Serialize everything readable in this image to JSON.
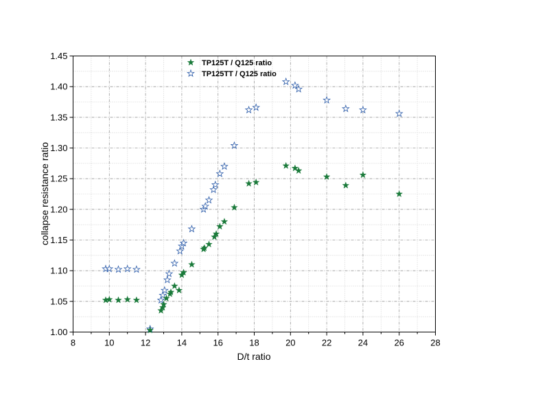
{
  "chart_data": {
    "type": "scatter",
    "title": "",
    "xlabel": "D/t ratio",
    "ylabel": "collapse resistance ratio",
    "xlim": [
      8,
      28
    ],
    "ylim": [
      1.0,
      1.45
    ],
    "xticks": [
      "8",
      "10",
      "12",
      "14",
      "16",
      "18",
      "20",
      "22",
      "24",
      "26",
      "28"
    ],
    "yticks": [
      "1.00",
      "1.05",
      "1.10",
      "1.15",
      "1.20",
      "1.25",
      "1.30",
      "1.35",
      "1.40",
      "1.45"
    ],
    "grid": true,
    "legend_position": "top",
    "series": [
      {
        "name": "TP125T / Q125 ratio",
        "marker": "filled-star",
        "color": "#1a7a3a",
        "points": [
          [
            9.8,
            1.052
          ],
          [
            10.0,
            1.053
          ],
          [
            10.5,
            1.052
          ],
          [
            11.0,
            1.053
          ],
          [
            11.5,
            1.052
          ],
          [
            12.25,
            1.003
          ],
          [
            12.85,
            1.035
          ],
          [
            12.95,
            1.04
          ],
          [
            13.0,
            1.045
          ],
          [
            13.15,
            1.055
          ],
          [
            13.35,
            1.062
          ],
          [
            13.4,
            1.065
          ],
          [
            13.6,
            1.075
          ],
          [
            13.85,
            1.068
          ],
          [
            14.0,
            1.093
          ],
          [
            14.1,
            1.097
          ],
          [
            14.55,
            1.11
          ],
          [
            15.2,
            1.135
          ],
          [
            15.25,
            1.137
          ],
          [
            15.5,
            1.143
          ],
          [
            15.8,
            1.155
          ],
          [
            15.9,
            1.16
          ],
          [
            16.1,
            1.172
          ],
          [
            16.35,
            1.18
          ],
          [
            16.9,
            1.203
          ],
          [
            17.7,
            1.242
          ],
          [
            18.1,
            1.244
          ],
          [
            19.75,
            1.271
          ],
          [
            20.25,
            1.267
          ],
          [
            20.45,
            1.263
          ],
          [
            22.0,
            1.253
          ],
          [
            23.05,
            1.239
          ],
          [
            24.0,
            1.256
          ],
          [
            26.0,
            1.225
          ]
        ]
      },
      {
        "name": "TP125TT / Q125 ratio",
        "marker": "open-star",
        "color": "#2a5aa8",
        "points": [
          [
            9.8,
            1.103
          ],
          [
            10.0,
            1.103
          ],
          [
            10.5,
            1.102
          ],
          [
            11.0,
            1.103
          ],
          [
            11.5,
            1.102
          ],
          [
            12.25,
            1.005
          ],
          [
            12.85,
            1.052
          ],
          [
            12.95,
            1.06
          ],
          [
            13.05,
            1.068
          ],
          [
            13.2,
            1.085
          ],
          [
            13.3,
            1.095
          ],
          [
            13.6,
            1.112
          ],
          [
            13.9,
            1.132
          ],
          [
            14.0,
            1.14
          ],
          [
            14.1,
            1.145
          ],
          [
            14.55,
            1.168
          ],
          [
            15.2,
            1.2
          ],
          [
            15.3,
            1.205
          ],
          [
            15.5,
            1.215
          ],
          [
            15.75,
            1.232
          ],
          [
            15.85,
            1.24
          ],
          [
            16.1,
            1.258
          ],
          [
            16.35,
            1.27
          ],
          [
            16.9,
            1.304
          ],
          [
            17.7,
            1.362
          ],
          [
            18.1,
            1.366
          ],
          [
            19.75,
            1.408
          ],
          [
            20.25,
            1.402
          ],
          [
            20.45,
            1.396
          ],
          [
            22.0,
            1.378
          ],
          [
            23.05,
            1.364
          ],
          [
            24.0,
            1.362
          ],
          [
            26.0,
            1.356
          ]
        ]
      }
    ]
  }
}
